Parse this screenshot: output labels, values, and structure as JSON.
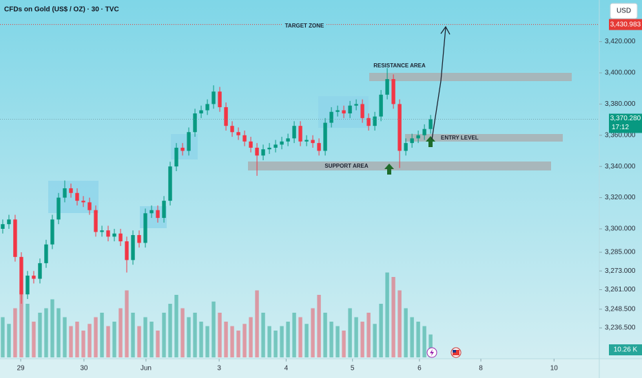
{
  "chart_data": {
    "type": "candlestick",
    "title": "CFDs on Gold (US$ / OZ) · 30 · TVC",
    "currency": "USD",
    "open": [
      3300,
      3303,
      3306,
      3282,
      3258,
      3270,
      3268,
      3278,
      3290,
      3306,
      3320,
      3326,
      3323,
      3318,
      3317,
      3312,
      3298,
      3299,
      3295,
      3297,
      3292,
      3280,
      3296,
      3291,
      3310,
      3312,
      3307,
      3318,
      3340,
      3352,
      3350,
      3362,
      3374,
      3376,
      3380,
      3388,
      3378,
      3366,
      3362,
      3360,
      3356,
      3352,
      3347,
      3351,
      3352,
      3354,
      3356,
      3358,
      3366,
      3356,
      3357,
      3355,
      3350,
      3368,
      3375,
      3376,
      3374,
      3379,
      3380,
      3371,
      3366,
      3372,
      3386,
      3396,
      3380,
      3350,
      3355,
      3358,
      3360,
      3364
    ],
    "high": [
      3306,
      3309,
      3309,
      3285,
      3273,
      3273,
      3281,
      3293,
      3309,
      3323,
      3331,
      3329,
      3326,
      3321,
      3320,
      3315,
      3302,
      3302,
      3300,
      3300,
      3295,
      3299,
      3299,
      3313,
      3315,
      3315,
      3321,
      3343,
      3355,
      3355,
      3365,
      3377,
      3379,
      3383,
      3392,
      3391,
      3381,
      3369,
      3365,
      3363,
      3359,
      3355,
      3354,
      3355,
      3357,
      3359,
      3361,
      3369,
      3369,
      3360,
      3360,
      3358,
      3371,
      3378,
      3379,
      3379,
      3382,
      3383,
      3383,
      3374,
      3375,
      3389,
      3403,
      3399,
      3383,
      3358,
      3361,
      3363,
      3367,
      3373
    ],
    "low": [
      3297,
      3300,
      3279,
      3252,
      3255,
      3265,
      3265,
      3275,
      3287,
      3303,
      3317,
      3320,
      3315,
      3314,
      3309,
      3295,
      3295,
      3292,
      3292,
      3289,
      3272,
      3277,
      3288,
      3288,
      3307,
      3304,
      3304,
      3315,
      3337,
      3347,
      3347,
      3359,
      3371,
      3373,
      3377,
      3375,
      3363,
      3359,
      3357,
      3353,
      3349,
      3334,
      3344,
      3348,
      3349,
      3351,
      3353,
      3355,
      3353,
      3353,
      3352,
      3347,
      3347,
      3365,
      3372,
      3371,
      3371,
      3376,
      3368,
      3363,
      3363,
      3369,
      3383,
      3377,
      3339,
      3347,
      3352,
      3355,
      3357,
      3361
    ],
    "close": [
      3303,
      3306,
      3282,
      3258,
      3270,
      3268,
      3278,
      3290,
      3306,
      3320,
      3326,
      3323,
      3318,
      3317,
      3312,
      3298,
      3299,
      3295,
      3297,
      3292,
      3280,
      3296,
      3291,
      3310,
      3312,
      3307,
      3318,
      3340,
      3352,
      3350,
      3362,
      3374,
      3376,
      3380,
      3388,
      3378,
      3366,
      3362,
      3360,
      3356,
      3352,
      3347,
      3351,
      3352,
      3354,
      3356,
      3358,
      3366,
      3356,
      3357,
      3355,
      3350,
      3368,
      3375,
      3376,
      3374,
      3379,
      3380,
      3371,
      3366,
      3372,
      3386,
      3396,
      3380,
      3350,
      3355,
      3358,
      3360,
      3364,
      3370.28
    ],
    "up_color": "#089981",
    "down_color": "#f23645",
    "volume": {
      "values": [
        18,
        15,
        22,
        30,
        24,
        16,
        20,
        22,
        26,
        22,
        18,
        14,
        16,
        12,
        15,
        18,
        20,
        14,
        16,
        22,
        30,
        20,
        14,
        18,
        16,
        12,
        20,
        24,
        28,
        22,
        18,
        20,
        16,
        14,
        25,
        20,
        16,
        14,
        12,
        15,
        18,
        30,
        20,
        14,
        12,
        14,
        16,
        20,
        18,
        15,
        22,
        28,
        20,
        16,
        14,
        12,
        22,
        18,
        16,
        20,
        15,
        24,
        38,
        36,
        30,
        22,
        18,
        16,
        14,
        10.26
      ],
      "ylim": [
        0,
        40
      ],
      "last_label": "10.26 K"
    },
    "xlim": [
      -0.44,
      96.2
    ],
    "xticks": [
      {
        "value": 2.9,
        "label": "29"
      },
      {
        "value": 13.1,
        "label": "30"
      },
      {
        "value": 23.1,
        "label": "Jun"
      },
      {
        "value": 34.9,
        "label": "3"
      },
      {
        "value": 45.7,
        "label": "4"
      },
      {
        "value": 56.4,
        "label": "5"
      },
      {
        "value": 67.2,
        "label": "6"
      },
      {
        "value": 77.1,
        "label": "8"
      },
      {
        "value": 88.9,
        "label": "10"
      }
    ],
    "ylim": [
      3217.6,
      3446.7
    ],
    "yticks": [
      {
        "value": 3420,
        "label": "3,420.000"
      },
      {
        "value": 3400,
        "label": "3,400.000"
      },
      {
        "value": 3380,
        "label": "3,380.000"
      },
      {
        "value": 3360,
        "label": "3,360.000"
      },
      {
        "value": 3340,
        "label": "3,340.000"
      },
      {
        "value": 3320,
        "label": "3,320.000"
      },
      {
        "value": 3300,
        "label": "3,300.000"
      },
      {
        "value": 3285,
        "label": "3,285.000"
      },
      {
        "value": 3273,
        "label": "3,273.000"
      },
      {
        "value": 3261,
        "label": "3,261.000"
      },
      {
        "value": 3248.5,
        "label": "3,248.500"
      },
      {
        "value": 3236.5,
        "label": "3,236.500"
      }
    ],
    "grid": false,
    "last_price": {
      "value": 3370.28,
      "label": "3,370.280"
    },
    "countdown": "17:12",
    "target_price": {
      "value": 3430.983,
      "label": "3,430.983"
    },
    "annotations": {
      "target": "TARGET ZONE",
      "resistance": "RESISTANCE AREA",
      "entry": "ENTRY LEVEL",
      "support": "SUPPORT AREA"
    }
  }
}
